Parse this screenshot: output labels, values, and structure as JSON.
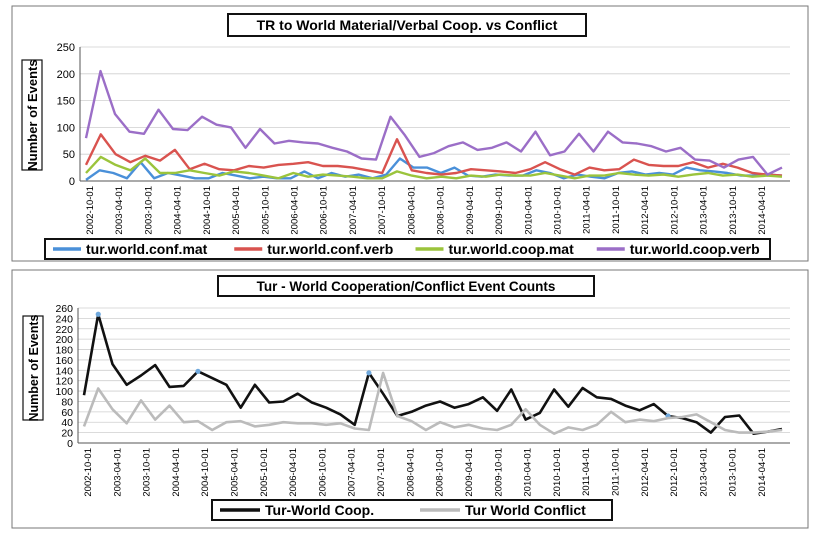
{
  "chart_data": [
    {
      "type": "line",
      "title": "TR to World Material/Verbal Coop. vs Conflict",
      "ylabel": "Number of Events",
      "xlabel": "",
      "ylim": [
        0,
        250
      ],
      "yticks": [
        0,
        50,
        100,
        150,
        200,
        250
      ],
      "grid": true,
      "legend": "bottom",
      "x_tick_labels": [
        "2002-10-01",
        "2003-04-01",
        "2003-10-01",
        "2004-04-01",
        "2004-10-01",
        "2005-04-01",
        "2005-10-01",
        "2006-04-01",
        "2006-10-01",
        "2007-04-01",
        "2007-10-01",
        "2008-04-01",
        "2008-10-01",
        "2009-04-01",
        "2009-10-01",
        "2010-04-01",
        "2010-10-01",
        "2011-04-01",
        "2011-10-01",
        "2012-04-01",
        "2012-10-01",
        "2013-04-01",
        "2013-10-01",
        "2014-04-01"
      ],
      "series": [
        {
          "name": "tur.world.conf.mat",
          "color": "#4a90d9",
          "values": [
            2,
            20,
            15,
            5,
            35,
            5,
            15,
            10,
            5,
            5,
            15,
            10,
            5,
            8,
            5,
            5,
            18,
            5,
            15,
            8,
            12,
            5,
            12,
            42,
            25,
            25,
            15,
            25,
            10,
            8,
            12,
            10,
            10,
            20,
            15,
            5,
            12,
            8,
            5,
            15,
            18,
            12,
            15,
            12,
            25,
            20,
            18,
            15,
            10,
            10,
            12,
            10
          ]
        },
        {
          "name": "tur.world.conf.verb",
          "color": "#d9534f",
          "values": [
            30,
            87,
            50,
            35,
            47,
            38,
            58,
            22,
            32,
            22,
            20,
            28,
            25,
            30,
            32,
            35,
            28,
            28,
            25,
            20,
            15,
            78,
            20,
            15,
            12,
            15,
            22,
            20,
            18,
            15,
            22,
            35,
            22,
            12,
            25,
            20,
            22,
            40,
            30,
            28,
            28,
            35,
            25,
            32,
            25,
            15,
            12,
            10
          ]
        },
        {
          "name": "tur.world.coop.mat",
          "color": "#9bc43c",
          "values": [
            15,
            45,
            30,
            20,
            42,
            15,
            15,
            20,
            15,
            10,
            18,
            15,
            10,
            5,
            15,
            8,
            12,
            10,
            8,
            5,
            5,
            18,
            10,
            5,
            8,
            5,
            10,
            8,
            12,
            10,
            10,
            15,
            10,
            5,
            10,
            10,
            15,
            12,
            10,
            12,
            8,
            12,
            15,
            10,
            12,
            8,
            10,
            8
          ]
        },
        {
          "name": "tur.world.coop.verb",
          "color": "#9b6ec7",
          "values": [
            80,
            205,
            125,
            92,
            88,
            133,
            97,
            95,
            120,
            105,
            100,
            62,
            97,
            70,
            75,
            72,
            70,
            62,
            55,
            42,
            40,
            120,
            85,
            45,
            52,
            65,
            72,
            58,
            62,
            72,
            55,
            92,
            48,
            55,
            88,
            55,
            92,
            72,
            70,
            65,
            55,
            62,
            40,
            38,
            25,
            40,
            45,
            12,
            25
          ]
        }
      ]
    },
    {
      "type": "line",
      "title": "Tur - World Cooperation/Conflict Event Counts",
      "ylabel": "Number of Events",
      "xlabel": "",
      "ylim": [
        0,
        260
      ],
      "yticks": [
        0,
        20,
        40,
        60,
        80,
        100,
        120,
        140,
        160,
        180,
        200,
        220,
        240,
        260
      ],
      "grid": true,
      "legend": "bottom",
      "x_tick_labels": [
        "2002-10-01",
        "2003-04-01",
        "2003-10-01",
        "2004-04-01",
        "2004-10-01",
        "2005-04-01",
        "2005-10-01",
        "2006-04-01",
        "2006-10-01",
        "2007-04-01",
        "2007-10-01",
        "2008-04-01",
        "2008-10-01",
        "2009-04-01",
        "2009-10-01",
        "2010-04-01",
        "2010-10-01",
        "2011-04-01",
        "2011-10-01",
        "2012-04-01",
        "2012-10-01",
        "2013-04-01",
        "2013-10-01",
        "2014-04-01"
      ],
      "series": [
        {
          "name": "Tur-World Coop.",
          "color": "#111111",
          "values": [
            92,
            248,
            152,
            112,
            130,
            150,
            108,
            110,
            138,
            125,
            112,
            68,
            112,
            78,
            80,
            95,
            78,
            68,
            55,
            35,
            135,
            95,
            52,
            60,
            72,
            80,
            68,
            75,
            88,
            62,
            103,
            45,
            58,
            103,
            70,
            106,
            88,
            85,
            72,
            63,
            75,
            52,
            48,
            40,
            20,
            50,
            53,
            18,
            22,
            27
          ],
          "highlight_points": [
            1,
            8,
            20,
            41
          ]
        },
        {
          "name": "Tur World Conflict",
          "color": "#bbbbbb",
          "values": [
            32,
            105,
            65,
            38,
            82,
            45,
            72,
            40,
            42,
            25,
            40,
            42,
            32,
            35,
            40,
            38,
            38,
            35,
            38,
            28,
            25,
            135,
            52,
            42,
            25,
            40,
            30,
            35,
            28,
            25,
            35,
            65,
            35,
            18,
            30,
            25,
            35,
            60,
            40,
            45,
            42,
            48,
            50,
            55,
            40,
            25,
            20,
            20,
            22,
            25
          ]
        }
      ]
    }
  ]
}
